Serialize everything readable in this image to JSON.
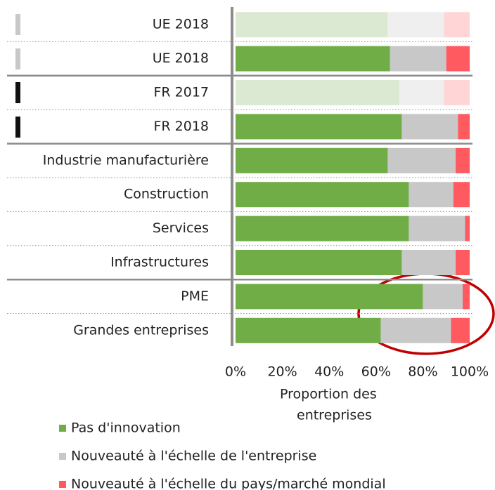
{
  "chart_data": {
    "type": "stacked_bar_horizontal",
    "categories": [
      "UE 2018",
      "UE 2018",
      "FR 2017",
      "FR 2018",
      "Industrie manufacturière",
      "Construction",
      "Services",
      "Infrastructures",
      "PME",
      "Grandes entreprises"
    ],
    "faded_categories": [
      0,
      2
    ],
    "series": [
      {
        "name": "Pas d'innovation",
        "color": "#70ad47",
        "light_color": "#dce9d2",
        "values": [
          65,
          66,
          70,
          71,
          65,
          74,
          74,
          71,
          80,
          62
        ]
      },
      {
        "name": "Nouveauté à l'échelle de l'entreprise",
        "color": "#c8c8c8",
        "light_color": "#efefef",
        "values": [
          24,
          24,
          19,
          24,
          29,
          19,
          24,
          23,
          17,
          30
        ]
      },
      {
        "name": "Nouveauté à l'échelle du pays/marché mondial",
        "color": "#ff5a5f",
        "light_color": "#ffd5d5",
        "values": [
          11,
          10,
          11,
          5,
          6,
          7,
          2,
          6,
          3,
          8
        ]
      }
    ],
    "xlim": [
      0,
      100
    ],
    "xticks": [
      {
        "value": 0,
        "label": "0%"
      },
      {
        "value": 20,
        "label": "20%"
      },
      {
        "value": 40,
        "label": "40%"
      },
      {
        "value": 60,
        "label": "60%"
      },
      {
        "value": 80,
        "label": "80%"
      },
      {
        "value": 100,
        "label": "100%"
      }
    ],
    "x_label": [
      "Proportion des",
      "entreprises"
    ]
  }
}
